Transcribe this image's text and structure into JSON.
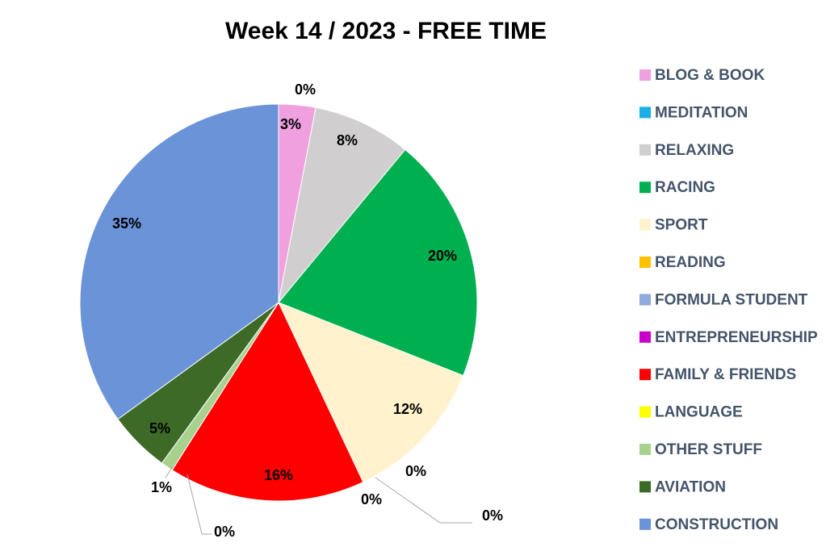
{
  "chart_data": {
    "type": "pie",
    "title": "Week 14 / 2023 - FREE TIME",
    "categories": [
      "BLOG & BOOK",
      "MEDITATION",
      "RELAXING",
      "RACING",
      "SPORT",
      "READING",
      "FORMULA STUDENT",
      "ENTREPRENEURSHIP",
      "FAMILY & FRIENDS",
      "LANGUAGE",
      "OTHER STUFF",
      "AVIATION",
      "CONSTRUCTION"
    ],
    "values": [
      3,
      0,
      8,
      20,
      12,
      0,
      0,
      0,
      16,
      0,
      1,
      5,
      35
    ],
    "value_labels": [
      "3%",
      "0%",
      "8%",
      "20%",
      "12%",
      "0%",
      "0%",
      "0%",
      "16%",
      "0%",
      "1%",
      "5%",
      "35%"
    ],
    "colors": [
      "#f09fdf",
      "#1aafe6",
      "#d0cece",
      "#00b050",
      "#fff2cc",
      "#ffc000",
      "#8faadc",
      "#cc00cc",
      "#ff0000",
      "#ffff00",
      "#a9d18e",
      "#3d6b27",
      "#6b93d8"
    ],
    "legend": "right"
  }
}
